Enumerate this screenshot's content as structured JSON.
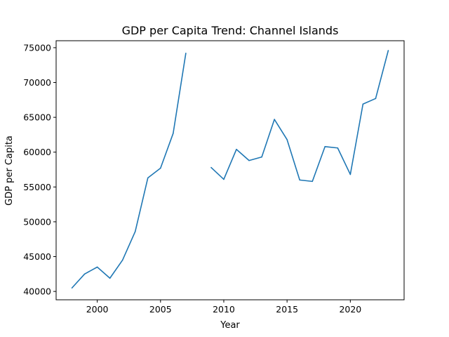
{
  "chart_data": {
    "type": "line",
    "title": "GDP per Capita Trend: Channel Islands",
    "xlabel": "Year",
    "ylabel": "GDP per Capita",
    "xlim": [
      1996.75,
      2024.25
    ],
    "ylim": [
      38800,
      76000
    ],
    "x_ticks": [
      2000,
      2005,
      2010,
      2015,
      2020
    ],
    "y_ticks": [
      40000,
      45000,
      50000,
      55000,
      60000,
      65000,
      70000,
      75000
    ],
    "grid": false,
    "series": [
      {
        "color": "#1f77b4",
        "points": [
          {
            "x": 1998,
            "y": 40500
          },
          {
            "x": 1999,
            "y": 42500
          },
          {
            "x": 2000,
            "y": 43500
          },
          {
            "x": 2001,
            "y": 41900
          },
          {
            "x": 2002,
            "y": 44500
          },
          {
            "x": 2003,
            "y": 48600
          },
          {
            "x": 2004,
            "y": 56300
          },
          {
            "x": 2005,
            "y": 57700
          },
          {
            "x": 2006,
            "y": 62700
          },
          {
            "x": 2007,
            "y": 74200
          },
          {
            "x": 2008,
            "y": null
          },
          {
            "x": 2009,
            "y": 57800
          },
          {
            "x": 2010,
            "y": 56100
          },
          {
            "x": 2011,
            "y": 60400
          },
          {
            "x": 2012,
            "y": 58800
          },
          {
            "x": 2013,
            "y": 59300
          },
          {
            "x": 2014,
            "y": 64700
          },
          {
            "x": 2015,
            "y": 61800
          },
          {
            "x": 2016,
            "y": 56000
          },
          {
            "x": 2017,
            "y": 55800
          },
          {
            "x": 2018,
            "y": 60800
          },
          {
            "x": 2019,
            "y": 60600
          },
          {
            "x": 2020,
            "y": 56800
          },
          {
            "x": 2021,
            "y": 66900
          },
          {
            "x": 2022,
            "y": 67700
          },
          {
            "x": 2023,
            "y": 74600
          }
        ]
      }
    ]
  }
}
